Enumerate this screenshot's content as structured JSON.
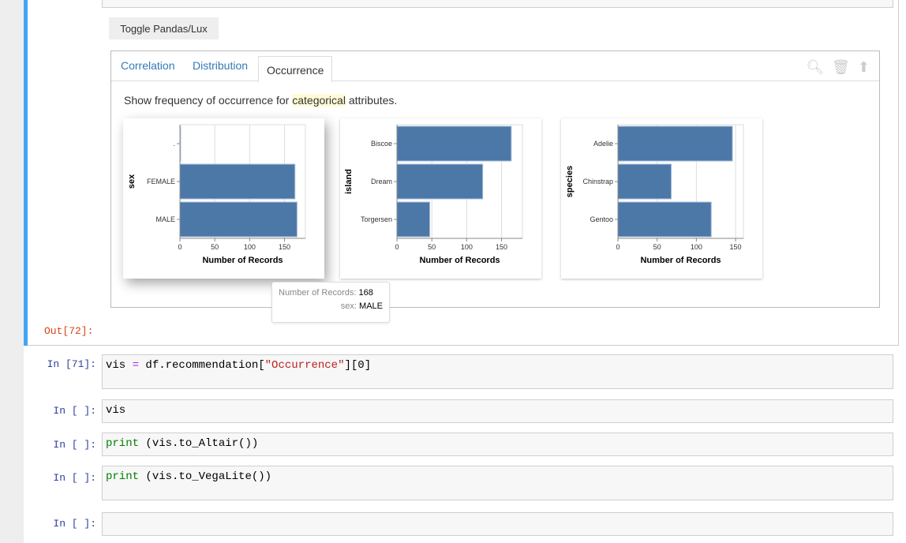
{
  "toggle_label": "Toggle Pandas/Lux",
  "tabs": [
    {
      "label": "Correlation"
    },
    {
      "label": "Distribution"
    },
    {
      "label": "Occurrence",
      "active": true
    }
  ],
  "toolbar_icons": [
    "search-icon",
    "trash-icon",
    "upload-icon"
  ],
  "description": {
    "before": "Show frequency of occurrence for ",
    "highlight": "categorical",
    "after": " attributes."
  },
  "bar_color": "#4c78a8",
  "chart_data": [
    {
      "type": "bar",
      "orientation": "horizontal",
      "ylabel": "sex",
      "xlabel": "Number of Records",
      "categories": [
        ".",
        "FEMALE",
        "MALE"
      ],
      "values": [
        1,
        165,
        168
      ],
      "xticks": [
        0,
        50,
        100,
        150
      ],
      "xlim": [
        0,
        180
      ]
    },
    {
      "type": "bar",
      "orientation": "horizontal",
      "ylabel": "island",
      "xlabel": "Number of Records",
      "categories": [
        "Biscoe",
        "Dream",
        "Torgersen"
      ],
      "values": [
        164,
        123,
        47
      ],
      "xticks": [
        0,
        50,
        100,
        150
      ],
      "xlim": [
        0,
        180
      ]
    },
    {
      "type": "bar",
      "orientation": "horizontal",
      "ylabel": "species",
      "xlabel": "Number of Records",
      "categories": [
        "Adelie",
        "Chinstrap",
        "Gentoo"
      ],
      "values": [
        146,
        68,
        119
      ],
      "xticks": [
        0,
        50,
        100,
        150
      ],
      "xlim": [
        0,
        160
      ]
    }
  ],
  "tooltip": {
    "k1": "Number of Records:",
    "v1": "168",
    "k2": "sex:",
    "v2": "MALE"
  },
  "out_prompt": "Out[72]:",
  "cells": [
    {
      "prompt": "In [71]:",
      "parts": [
        [
          "",
          "vis "
        ],
        [
          "op",
          "="
        ],
        [
          "",
          " df.recommendation["
        ],
        [
          "str",
          "\"Occurrence\""
        ],
        [
          "",
          "][0]"
        ]
      ]
    },
    {
      "prompt": "In [ ]:",
      "parts": [
        [
          "",
          "vis"
        ]
      ]
    },
    {
      "prompt": "In [ ]:",
      "parts": [
        [
          "kw",
          "print"
        ],
        [
          "",
          " (vis.to_Altair())"
        ]
      ]
    },
    {
      "prompt": "In [ ]:",
      "parts": [
        [
          "kw",
          "print"
        ],
        [
          "",
          " (vis.to_VegaLite())"
        ]
      ]
    },
    {
      "prompt": "In [ ]:",
      "parts": []
    }
  ]
}
